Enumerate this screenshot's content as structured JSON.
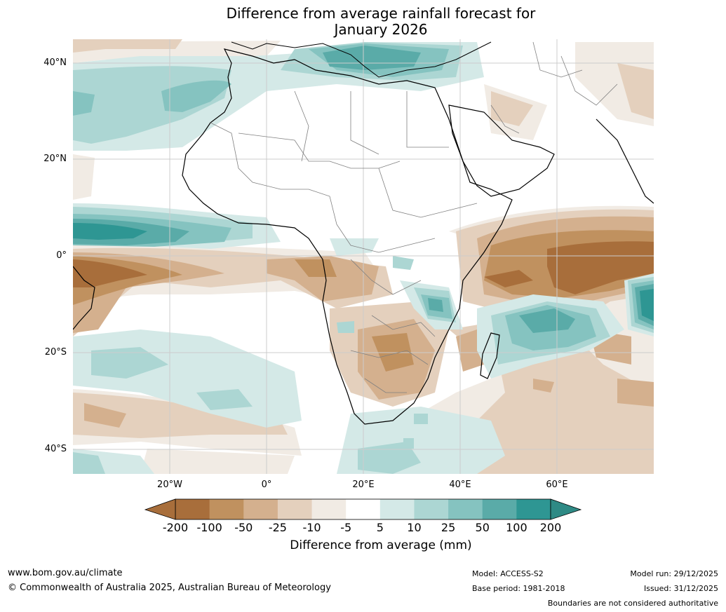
{
  "title": {
    "line1": "Difference from average rainfall forecast for",
    "line2": "January 2026"
  },
  "axes": {
    "lat_labels": [
      "40°N",
      "20°N",
      "0°",
      "20°S",
      "40°S"
    ],
    "lon_labels": [
      "20°W",
      "0°",
      "20°E",
      "40°E",
      "60°E"
    ]
  },
  "colorbar": {
    "ticks": [
      "-200",
      "-100",
      "-50",
      "-25",
      "-10",
      "-5",
      "5",
      "10",
      "25",
      "50",
      "100",
      "200"
    ],
    "colors": [
      "#a86e3b",
      "#c0915f",
      "#d4b08e",
      "#e4d0bd",
      "#f1ebe4",
      "#ffffff",
      "#d4e9e7",
      "#acd6d3",
      "#85c3c0",
      "#5aaba8",
      "#2e9693"
    ],
    "under_color": "#a86e3b",
    "over_color": "#2e8a85",
    "label": "Difference from average (mm)"
  },
  "map": {
    "background": "#ffffff",
    "gridline_color": "#cccccc",
    "coast_color": "#000000",
    "border_color": "#808080"
  },
  "footer": {
    "website": "www.bom.gov.au/climate",
    "copyright": "© Commonwealth of Australia 2025, Australian Bureau of Meteorology",
    "model": "Model: ACCESS-S2",
    "base_period": "Base period: 1981-2018",
    "model_run": "Model run: 29/12/2025",
    "issued": "Issued: 31/12/2025",
    "disclaimer": "Boundaries are not considered authoritative"
  }
}
